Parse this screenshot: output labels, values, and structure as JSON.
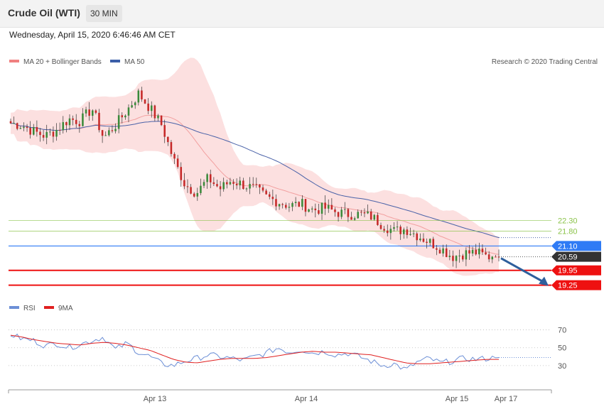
{
  "header": {
    "title": "Crude Oil (WTI)",
    "timeframe": "30 MIN",
    "timestamp": "Wednesday, April 15, 2020 6:46:46 AM CET"
  },
  "legend": {
    "items": [
      {
        "label": "MA 20 + Bollinger Bands",
        "color": "#f08080"
      },
      {
        "label": "MA 50",
        "color": "#3b5ea8"
      }
    ],
    "credit": "Research © 2020 Trading Central"
  },
  "rsi_legend": {
    "items": [
      {
        "label": "RSI",
        "color": "#6c8fd6"
      },
      {
        "label": "9MA",
        "color": "#e02020"
      }
    ]
  },
  "levels": [
    {
      "value": 22.3,
      "label": "22.30",
      "style": "resistance-light",
      "color": "#8bc34a"
    },
    {
      "value": 21.8,
      "label": "21.80",
      "style": "resistance-light",
      "color": "#8bc34a"
    },
    {
      "value": 21.1,
      "label": "21.10",
      "style": "pivot",
      "color": "#2f7bf5"
    },
    {
      "value": 20.59,
      "label": "20.59",
      "style": "last",
      "color": "#333333"
    },
    {
      "value": 19.95,
      "label": "19.95",
      "style": "support",
      "color": "#ee1111"
    },
    {
      "value": 19.25,
      "label": "19.25",
      "style": "support",
      "color": "#ee1111"
    }
  ],
  "chart_data": [
    {
      "type": "candlestick",
      "title": "Crude Oil (WTI)",
      "x_axis": {
        "tick_labels": [
          "Apr 13",
          "Apr 14",
          "Apr 15",
          "Apr 17"
        ]
      },
      "y_axis": {
        "range": [
          18.8,
          29.5
        ]
      },
      "grid": false,
      "series": [
        {
          "name": "MA 20 + Bollinger Bands",
          "kind": "ma_with_bands"
        },
        {
          "name": "MA 50",
          "kind": "ma"
        }
      ],
      "close_path": [
        26.9,
        26.8,
        26.5,
        26.3,
        26.6,
        27.1,
        27.0,
        27.6,
        26.2,
        26.8,
        27.5,
        28.3,
        27.6,
        26.8,
        25.2,
        24.0,
        23.6,
        24.3,
        23.8,
        24.2,
        24.0,
        23.8,
        23.4,
        23.2,
        23.0,
        23.1,
        22.8,
        22.9,
        22.7,
        22.6,
        22.6,
        22.5,
        22.1,
        21.8,
        21.9,
        21.6,
        21.3,
        21.0,
        20.6,
        20.75,
        20.8,
        20.6,
        20.59
      ],
      "last_price": 20.59,
      "forecast": {
        "from": 20.59,
        "to": 19.25
      }
    },
    {
      "type": "line",
      "title": "RSI",
      "y_axis": {
        "range": [
          10,
          80
        ],
        "tick_labels": [
          "70",
          "50",
          "30"
        ],
        "ticks": [
          70,
          50,
          30
        ]
      },
      "series": [
        {
          "name": "RSI",
          "color": "#6c8fd6",
          "values": [
            65,
            60,
            58,
            52,
            55,
            50,
            54,
            58,
            62,
            48,
            55,
            45,
            40,
            32,
            30,
            35,
            38,
            42,
            40,
            38,
            36,
            40,
            44,
            50,
            45,
            48,
            44,
            46,
            42,
            44,
            40,
            35,
            30,
            32,
            25,
            34,
            38,
            33,
            35,
            38,
            37,
            38,
            39
          ]
        },
        {
          "name": "9MA",
          "color": "#e02020",
          "values": [
            64,
            62,
            59,
            57,
            55,
            54,
            53,
            55,
            56,
            55,
            53,
            50,
            47,
            42,
            37,
            34,
            33,
            35,
            37,
            38,
            38,
            38,
            39,
            41,
            43,
            45,
            46,
            45,
            45,
            44,
            43,
            42,
            39,
            36,
            33,
            32,
            32,
            33,
            34,
            35,
            36,
            37,
            37
          ]
        }
      ]
    }
  ]
}
